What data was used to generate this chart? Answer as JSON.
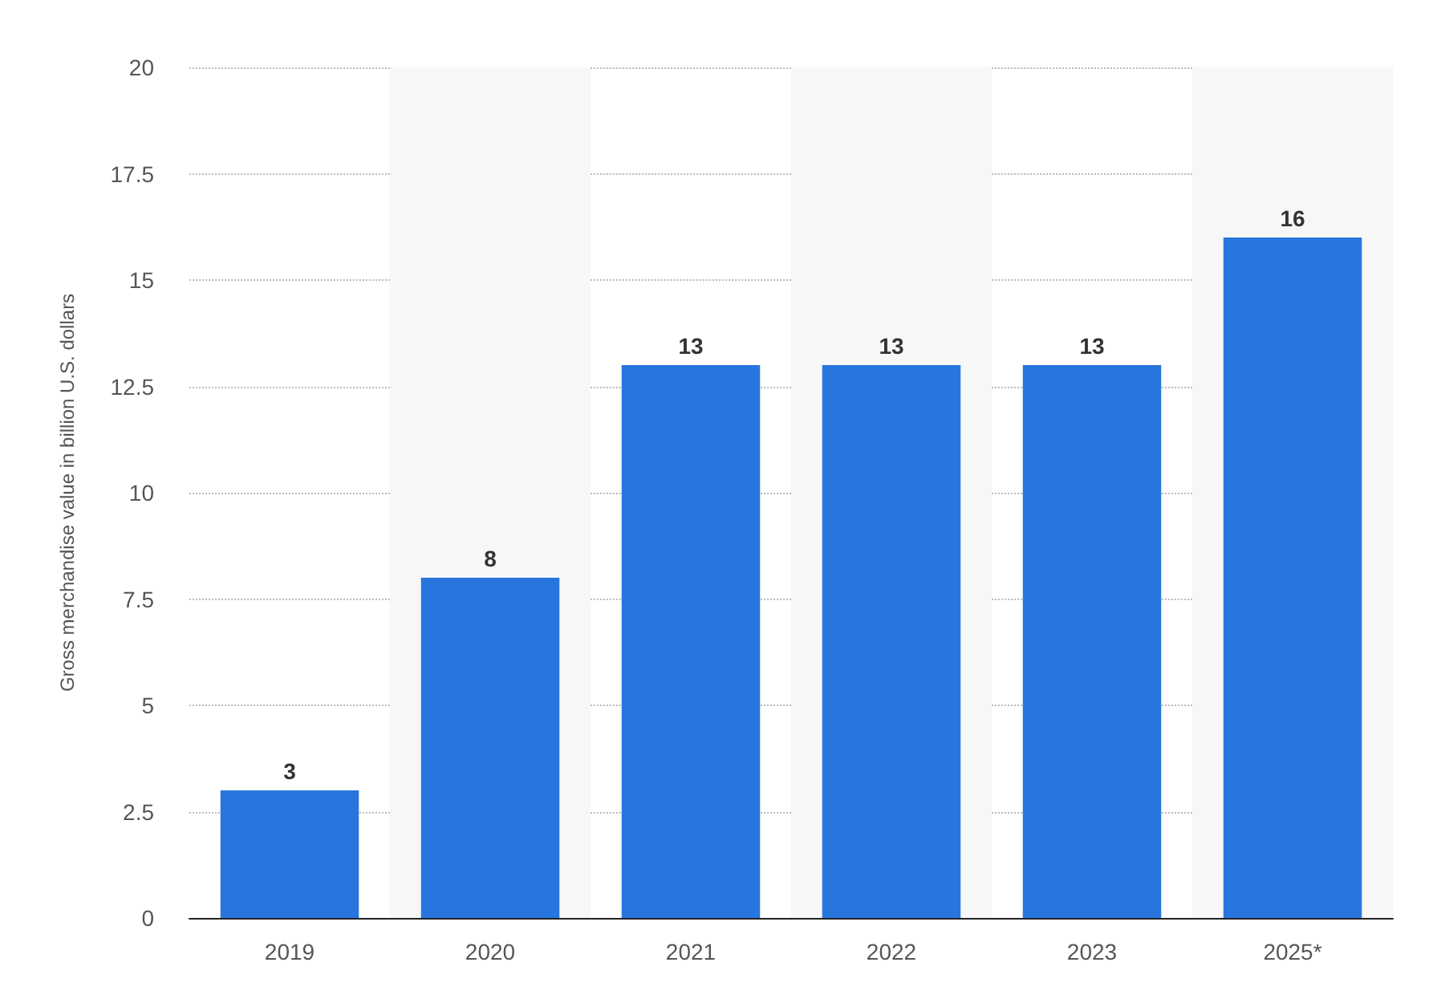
{
  "chart_data": {
    "type": "bar",
    "ylabel": "Gross merchandise value in billion U.S. dollars",
    "categories": [
      "2019",
      "2020",
      "2021",
      "2022",
      "2023",
      "2025*"
    ],
    "values": [
      3,
      8,
      13,
      13,
      13,
      16
    ],
    "color": "#2876dd",
    "ylim": [
      0,
      20
    ],
    "yticks": [
      0,
      2.5,
      5,
      7.5,
      10,
      12.5,
      15,
      17.5,
      20
    ],
    "grid": "y",
    "data_labels": true
  }
}
